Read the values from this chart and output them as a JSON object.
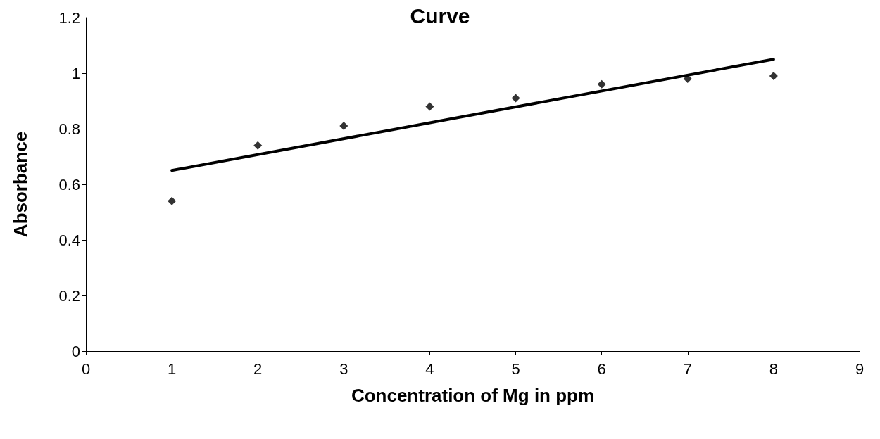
{
  "chart_data": {
    "type": "scatter",
    "title": "Curve",
    "xlabel": "Concentration of Mg in ppm",
    "ylabel": "Absorbance",
    "xlim": [
      0,
      9
    ],
    "xticks": [
      0,
      1,
      2,
      3,
      4,
      5,
      6,
      7,
      8,
      9
    ],
    "ylim": [
      0,
      1.2
    ],
    "yticks": [
      0,
      0.2,
      0.4,
      0.6,
      0.8,
      1,
      1.2
    ],
    "grid": false,
    "series": [
      {
        "color": "#000000",
        "marker": "diamond",
        "x": [
          1,
          2,
          3,
          4,
          5,
          6,
          7,
          8
        ],
        "values": [
          0.54,
          0.74,
          0.81,
          0.88,
          0.91,
          0.96,
          0.98,
          0.99
        ]
      },
      {
        "type": "line",
        "color": "#000000",
        "marker": "none",
        "line_style": "solid",
        "x": [
          1,
          8
        ],
        "values": [
          0.65,
          1.05
        ]
      }
    ]
  }
}
